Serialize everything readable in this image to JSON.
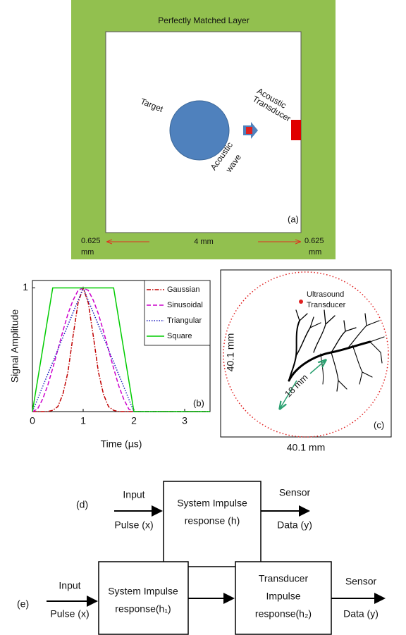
{
  "panel_a": {
    "outer_label": "Perfectly Matched Layer",
    "target": "Target",
    "transducer": [
      "Acoustic",
      "Transducer"
    ],
    "wave": [
      "Acoustic",
      "wave"
    ],
    "panel_label": "(a)",
    "left_width": [
      "0.625",
      "mm"
    ],
    "center_width": "4 mm",
    "right_width": [
      "0.625",
      "mm"
    ]
  },
  "chart_data": {
    "type": "line",
    "x_label": "Time (µs)",
    "y_label": "Signal Amplitude",
    "panel_label": "(b)",
    "x": [
      0,
      0.1,
      0.2,
      0.3,
      0.4,
      0.5,
      0.6,
      0.7,
      0.8,
      0.9,
      1,
      1.1,
      1.2,
      1.3,
      1.4,
      1.5,
      1.6,
      1.7,
      1.8,
      1.9,
      2,
      3.5
    ],
    "series": [
      {
        "name": "Gaussian",
        "color": "#c00000",
        "line_style": "dashdot",
        "values": [
          0,
          0,
          0,
          0,
          0.01,
          0.04,
          0.14,
          0.32,
          0.61,
          0.88,
          1,
          0.88,
          0.61,
          0.32,
          0.14,
          0.04,
          0.01,
          0,
          0,
          0,
          0,
          0
        ]
      },
      {
        "name": "Sinusoidal",
        "color": "#cc00cc",
        "line_style": "dashed",
        "values": [
          0,
          0.02,
          0.1,
          0.21,
          0.35,
          0.5,
          0.65,
          0.79,
          0.9,
          0.98,
          1,
          0.98,
          0.9,
          0.79,
          0.65,
          0.5,
          0.35,
          0.21,
          0.1,
          0.02,
          0,
          0
        ]
      },
      {
        "name": "Triangular",
        "color": "#1f1fbf",
        "line_style": "dotted",
        "values": [
          0,
          0.1,
          0.2,
          0.3,
          0.4,
          0.5,
          0.6,
          0.7,
          0.8,
          0.9,
          1,
          0.9,
          0.8,
          0.7,
          0.6,
          0.5,
          0.4,
          0.3,
          0.2,
          0.1,
          0,
          0
        ]
      },
      {
        "name": "Square",
        "color": "#00cc00",
        "line_style": "solid",
        "values": [
          0,
          0.25,
          0.5,
          0.75,
          1,
          1,
          1,
          1,
          1,
          1,
          1,
          1,
          1,
          1,
          1,
          1,
          1,
          0.75,
          0.5,
          0.25,
          0,
          0
        ]
      }
    ],
    "xlim": [
      0,
      3.5
    ],
    "xticks": [
      0,
      1,
      2,
      3
    ],
    "ylim": [
      0,
      1.06
    ],
    "yticks": [
      1
    ],
    "legend": "upper right"
  },
  "panel_c": {
    "transducer": [
      "Ultrasound",
      "Transducer"
    ],
    "height": "40.1 mm",
    "width": "40.1 mm",
    "distance": "18 mm",
    "panel_label": "(c)"
  },
  "panel_d": {
    "panel_label": "(d)",
    "input": [
      "Input",
      "Pulse (x)"
    ],
    "box": [
      "System Impulse",
      "response (h)"
    ],
    "output": [
      "Sensor",
      "Data (y)"
    ]
  },
  "panel_e": {
    "panel_label": "(e)",
    "input": [
      "Input",
      "Pulse (x)"
    ],
    "boxes": [
      [
        "System Impulse",
        "response(h₁)"
      ],
      [
        "Transducer",
        "Impulse",
        "response(h₂)"
      ]
    ],
    "output": [
      "Sensor",
      "Data (y)"
    ]
  }
}
